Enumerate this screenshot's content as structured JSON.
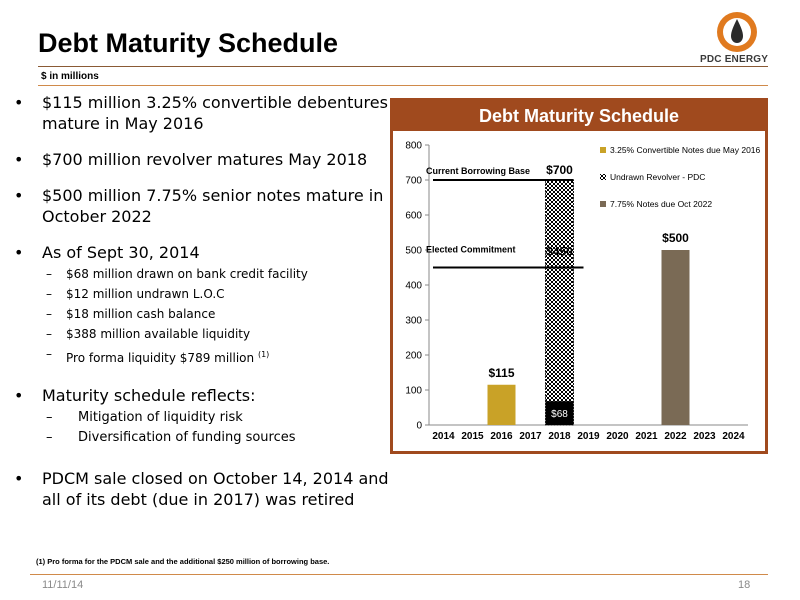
{
  "page": {
    "title": "Debt Maturity Schedule",
    "subtitle": "$ in millions",
    "logo_text": "PDC ENERGY",
    "date": "11/11/14",
    "page_number": "18",
    "footnote": "(1)     Pro forma for the PDCM sale and the additional $250 million of borrowing base."
  },
  "bullets": {
    "b1": "$115 million 3.25% convertible debentures mature in May 2016",
    "b2": "$700 million revolver matures May 2018",
    "b3": "$500 million 7.75% senior notes mature in October 2022",
    "b4": "As of Sept 30, 2014",
    "b4_subs": [
      "$68 million drawn on bank credit facility",
      "$12 million undrawn L.O.C",
      "$18 million cash balance",
      "$388 million available liquidity",
      "Pro forma liquidity $789 million"
    ],
    "b4_sup": "(1)",
    "b5": "Maturity schedule reflects:",
    "b5_subs": [
      "Mitigation of liquidity risk",
      "Diversification of funding sources"
    ],
    "b6": "PDCM sale closed on October 14, 2014 and all of its debt (due in 2017) was retired"
  },
  "chart_data": {
    "type": "bar",
    "title": "Debt Maturity Schedule",
    "categories": [
      "2014",
      "2015",
      "2016",
      "2017",
      "2018",
      "2019",
      "2020",
      "2021",
      "2022",
      "2023",
      "2024"
    ],
    "ylim": [
      0,
      800
    ],
    "yticks": [
      "0",
      "100",
      "200",
      "300",
      "400",
      "500",
      "600",
      "700",
      "800"
    ],
    "series": [
      {
        "name": "3.25% Convertible Notes due May 2016",
        "color": "#c9a227",
        "values": [
          0,
          0,
          115,
          0,
          0,
          0,
          0,
          0,
          0,
          0,
          0
        ]
      },
      {
        "name": "Undrawn Revolver - PDC",
        "color": "#000000",
        "pattern": "checker",
        "values": [
          0,
          0,
          0,
          0,
          700,
          0,
          0,
          0,
          0,
          0,
          0
        ]
      },
      {
        "name": "7.75% Notes due Oct 2022",
        "color": "#7a6a55",
        "values": [
          0,
          0,
          0,
          0,
          0,
          0,
          0,
          0,
          500,
          0,
          0
        ]
      }
    ],
    "drawn_revolver": {
      "category": "2018",
      "value": 68,
      "label": "$68",
      "color": "#000000"
    },
    "elected_commitment_value": 450,
    "data_labels": {
      "l2016": "$115",
      "l2018_top": "$700",
      "l2018_mid": "$450",
      "l2022": "$500"
    },
    "annotations": {
      "current_borrowing_base": "Current Borrowing Base",
      "elected_commitment": "Elected Commitment"
    },
    "legend_position": "top-right",
    "grid": false
  }
}
